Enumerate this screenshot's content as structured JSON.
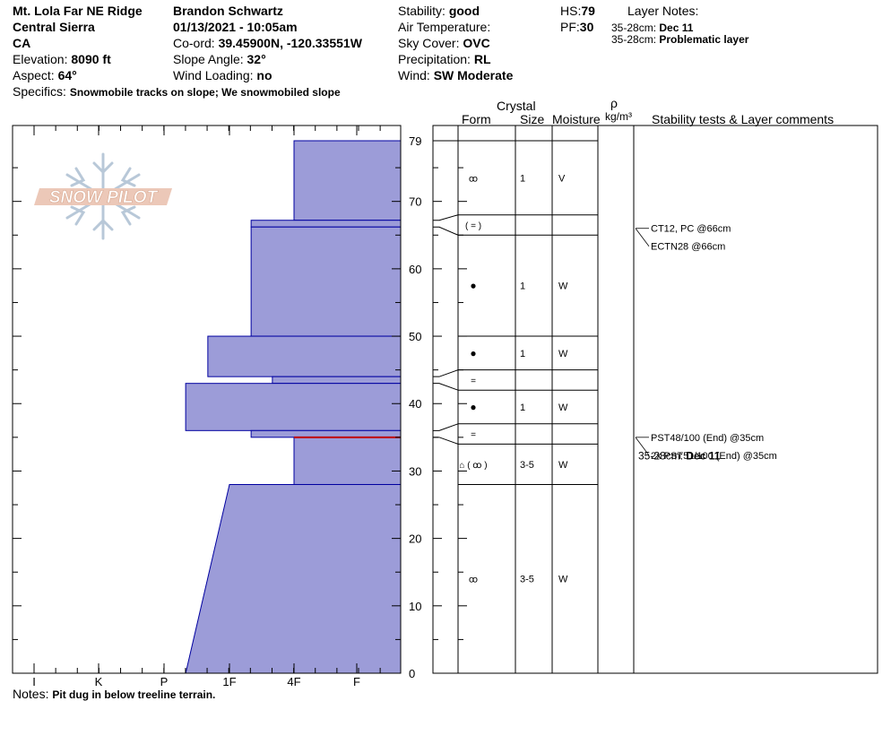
{
  "header": {
    "location": "Mt. Lola Far NE Ridge",
    "range": "Central Sierra",
    "state": "CA",
    "elevation_label": "Elevation:",
    "elevation_value": "8090 ft",
    "aspect_label": "Aspect:",
    "aspect_value": "64°",
    "specifics_label": "Specifics:",
    "specifics_value": "Snowmobile tracks on slope; We snowmobiled slope",
    "observer": "Brandon Schwartz",
    "datetime": "01/13/2021 - 10:05am",
    "coord_label": "Co-ord:",
    "coord_value": "39.45900N, -120.33551W",
    "slope_label": "Slope Angle:",
    "slope_value": "32°",
    "wind_loading_label": "Wind Loading:",
    "wind_loading_value": "no",
    "stability_label": "Stability:",
    "stability_value": "good",
    "air_temp_label": "Air Temperature:",
    "air_temp_value": "",
    "sky_label": "Sky Cover:",
    "sky_value": "OVC",
    "precip_label": "Precipitation:",
    "precip_value": "RL",
    "wind_label": "Wind:",
    "wind_value": "SW Moderate",
    "hs_label": "HS:",
    "hs_value": "79",
    "pf_label": "PF:",
    "pf_value": "30",
    "layer_notes_label": "Layer Notes:",
    "layer_notes": [
      {
        "range": "35-28cm:",
        "text": "Dec 11"
      },
      {
        "range": "35-28cm:",
        "text": "Problematic layer"
      }
    ]
  },
  "notes": {
    "label": "Notes:",
    "value": "Pit dug in below treeline terrain."
  },
  "logo": {
    "text": "SNOW PILOT"
  },
  "table_headers": {
    "crystal": "Crystal",
    "form": "Form",
    "size": "Size",
    "moisture": "Moisture",
    "rho": "ρ",
    "density_unit": "kg/m³",
    "comments": "Stability tests & Layer comments"
  },
  "colors": {
    "hardness_fill": "#9c9cd8",
    "hardness_stroke": "#0000a0",
    "weak_layer": "#c00000"
  },
  "chart_data": {
    "type": "snow-profile",
    "hardness_scale": [
      "I",
      "K",
      "P",
      "1F",
      "4F",
      "F"
    ],
    "depth_axis": {
      "min": 0,
      "max": 79,
      "ticks": [
        0,
        10,
        20,
        30,
        40,
        50,
        60,
        70,
        79
      ]
    },
    "hardness_layers": [
      {
        "top": 79,
        "bottom": 67.2,
        "hardness": "4F"
      },
      {
        "top": 67.2,
        "bottom": 66.2,
        "hardness": "1F+"
      },
      {
        "top": 66.2,
        "bottom": 50,
        "hardness": "1F+"
      },
      {
        "top": 50,
        "bottom": 44,
        "hardness": "1F-"
      },
      {
        "top": 44,
        "bottom": 43,
        "hardness": "4F-"
      },
      {
        "top": 43,
        "bottom": 36,
        "hardness": "P+"
      },
      {
        "top": 36,
        "bottom": 35,
        "hardness": "1F+"
      },
      {
        "top": 35,
        "bottom": 28,
        "hardness": "4F"
      },
      {
        "top": 28,
        "bottom": 0,
        "hardness_top": "1F",
        "hardness_bottom": "P+"
      }
    ],
    "weak_layer_depth": 35,
    "crystal_layers": [
      {
        "top": 79,
        "bottom": 68,
        "form": "fragments",
        "size": "1",
        "moisture": "V"
      },
      {
        "top": 68,
        "bottom": 65,
        "form": "( = )",
        "size": "",
        "moisture": ""
      },
      {
        "top": 65,
        "bottom": 50,
        "form": "rounds",
        "size": "1",
        "moisture": "W"
      },
      {
        "top": 50,
        "bottom": 45,
        "form": "rounds",
        "size": "1",
        "moisture": "W"
      },
      {
        "top": 45,
        "bottom": 42,
        "form": "=",
        "size": "",
        "moisture": ""
      },
      {
        "top": 42,
        "bottom": 37,
        "form": "rounds",
        "size": "1",
        "moisture": "W"
      },
      {
        "top": 37,
        "bottom": 34,
        "form": "=",
        "size": "",
        "moisture": ""
      },
      {
        "top": 34,
        "bottom": 28,
        "form": "depth-hoar ( fragments )",
        "size": "3-5",
        "moisture": "W"
      },
      {
        "top": 28,
        "bottom": 0,
        "form": "fragments",
        "size": "3-5",
        "moisture": "W"
      }
    ],
    "stability_tests": [
      {
        "text": "CT12, PC @66cm",
        "depth": 66
      },
      {
        "text": "ECTN28 @66cm",
        "depth": 66
      },
      {
        "text": "PST48/100 (End) @35cm",
        "depth": 35
      },
      {
        "text": "2x PST51/100 (End) @35cm",
        "depth": 35
      }
    ],
    "layer_comment": {
      "range": "35-28cm:",
      "text": "Dec 11"
    }
  }
}
